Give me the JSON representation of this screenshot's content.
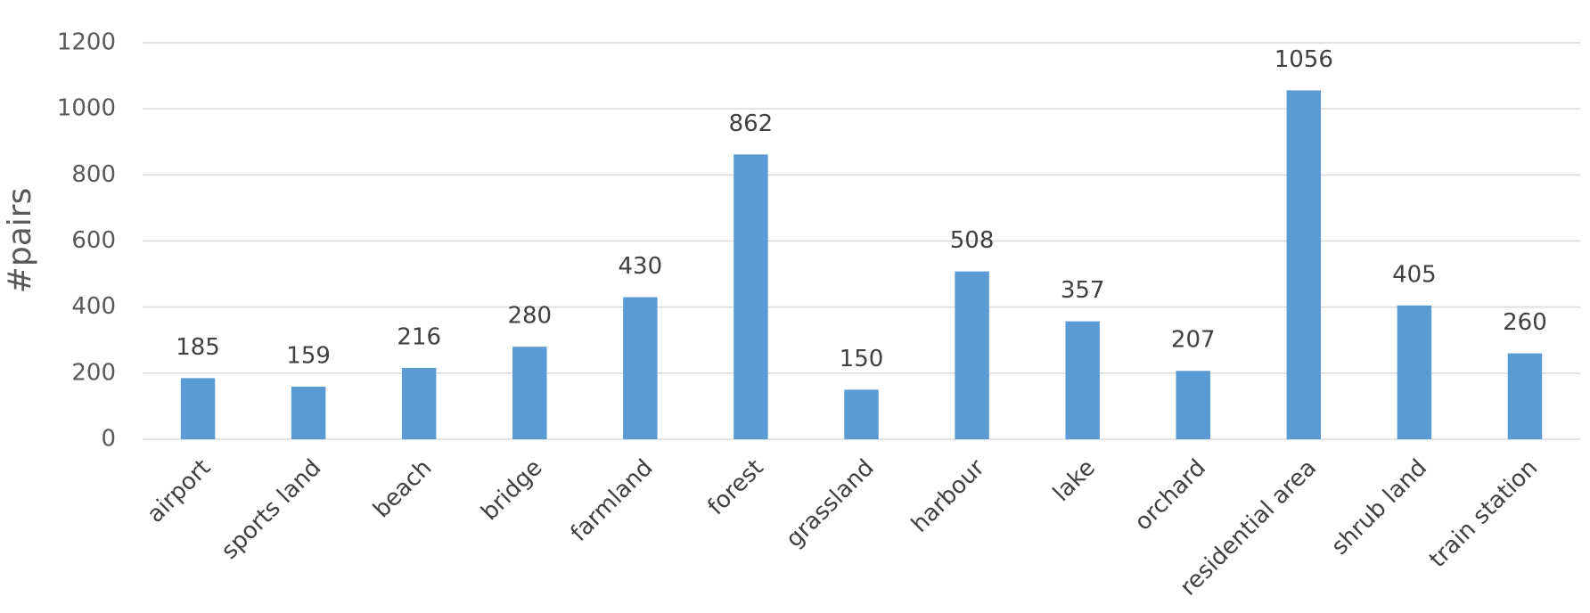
{
  "chart_data": {
    "type": "bar",
    "y_label": "#pairs",
    "categories": [
      "airport",
      "sports land",
      "beach",
      "bridge",
      "farmland",
      "forest",
      "grassland",
      "harbour",
      "lake",
      "orchard",
      "residential area",
      "shrub land",
      "train station"
    ],
    "values": [
      185,
      159,
      216,
      280,
      430,
      862,
      150,
      508,
      357,
      207,
      1056,
      405,
      260
    ],
    "color": "#5b9bd5",
    "ylim": [
      0,
      1200
    ],
    "yticks": [
      0,
      200,
      400,
      600,
      800,
      1000,
      1200
    ],
    "grid": true
  }
}
